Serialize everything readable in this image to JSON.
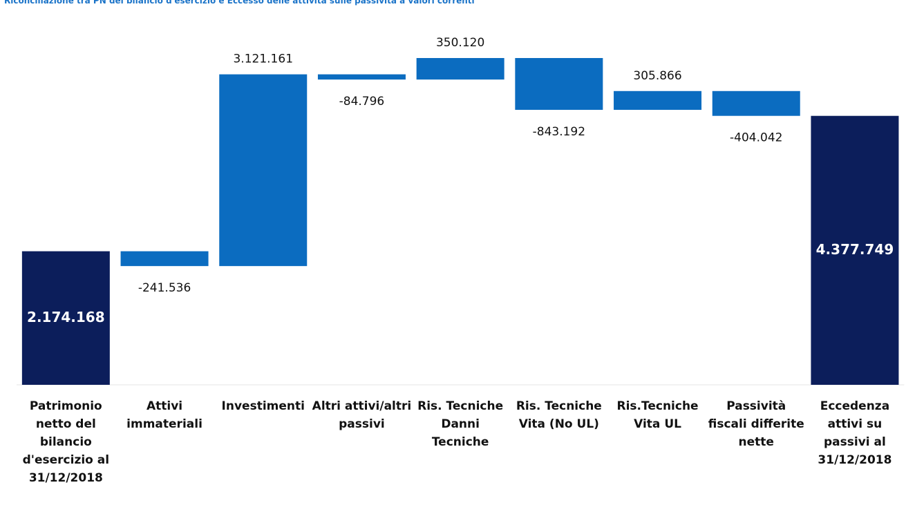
{
  "chart_data": {
    "type": "waterfall",
    "title": "Riconciliazione tra PN del bilancio d'esercizio e Eccesso delle attività sulle passività a valori correnti",
    "categories": [
      "Patrimonio netto del bilancio d'esercizio al 31/12/2018",
      "Attivi immateriali",
      "Investimenti",
      "Altri attivi/altri passivi",
      "Ris. Tecniche Danni Tecniche",
      "Ris. Tecniche Vita (No UL)",
      "Ris.Tecniche Vita UL",
      "Passività fiscali differite nette",
      "Eccedenza attivi su passivi al 31/12/2018"
    ],
    "values": [
      2174168,
      -241536,
      3121161,
      -84796,
      350120,
      -843192,
      305866,
      -404042,
      4377749
    ],
    "value_labels": [
      "2.174.168",
      "-241.536",
      "3.121.161",
      "-84.796",
      "350.120",
      "-843.192",
      "305.866",
      "-404.042",
      "4.377.749"
    ],
    "color": "#0b6cc0",
    "total_color": "#0c1e5b"
  }
}
